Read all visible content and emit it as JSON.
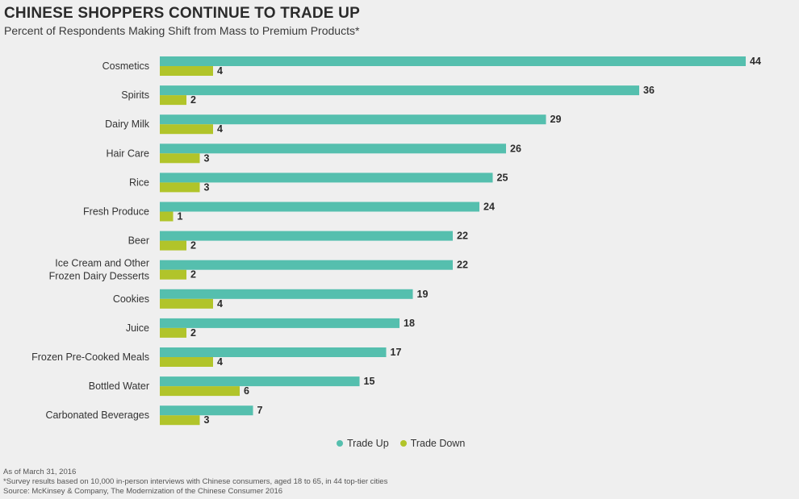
{
  "header": {
    "title": "CHINESE SHOPPERS CONTINUE TO TRADE UP",
    "subtitle": "Percent of Respondents Making Shift from Mass to Premium Products*"
  },
  "legend": {
    "trade_up": "Trade Up",
    "trade_down": "Trade Down"
  },
  "notes": {
    "date": "As of March 31, 2016",
    "survey": "*Survey results based on 10,000 in-person interviews with Chinese consumers, aged 18 to 65, in 44 top-tier cities",
    "source": "Source: McKinsey & Company, The Modernization of the Chinese Consumer 2016"
  },
  "colors": {
    "trade_up": "#55bfae",
    "trade_down": "#b1c42a",
    "background": "#efefef"
  },
  "chart_data": {
    "type": "bar",
    "orientation": "horizontal",
    "title": "CHINESE SHOPPERS CONTINUE TO TRADE UP",
    "subtitle": "Percent of Respondents Making Shift from Mass to Premium Products*",
    "xlim": [
      0,
      44
    ],
    "grid": false,
    "legend_position": "bottom",
    "categories": [
      [
        "Cosmetics"
      ],
      [
        "Spirits"
      ],
      [
        "Dairy Milk"
      ],
      [
        "Hair Care"
      ],
      [
        "Rice"
      ],
      [
        "Fresh Produce"
      ],
      [
        "Beer"
      ],
      [
        "Ice Cream and Other",
        "Frozen Dairy Desserts"
      ],
      [
        "Cookies"
      ],
      [
        "Juice"
      ],
      [
        "Frozen Pre-Cooked Meals"
      ],
      [
        "Bottled Water"
      ],
      [
        "Carbonated Beverages"
      ]
    ],
    "series": [
      {
        "name": "Trade Up",
        "values": [
          44,
          36,
          29,
          26,
          25,
          24,
          22,
          22,
          19,
          18,
          17,
          15,
          7
        ]
      },
      {
        "name": "Trade Down",
        "values": [
          4,
          2,
          4,
          3,
          3,
          1,
          2,
          2,
          4,
          2,
          4,
          6,
          3
        ]
      }
    ]
  }
}
